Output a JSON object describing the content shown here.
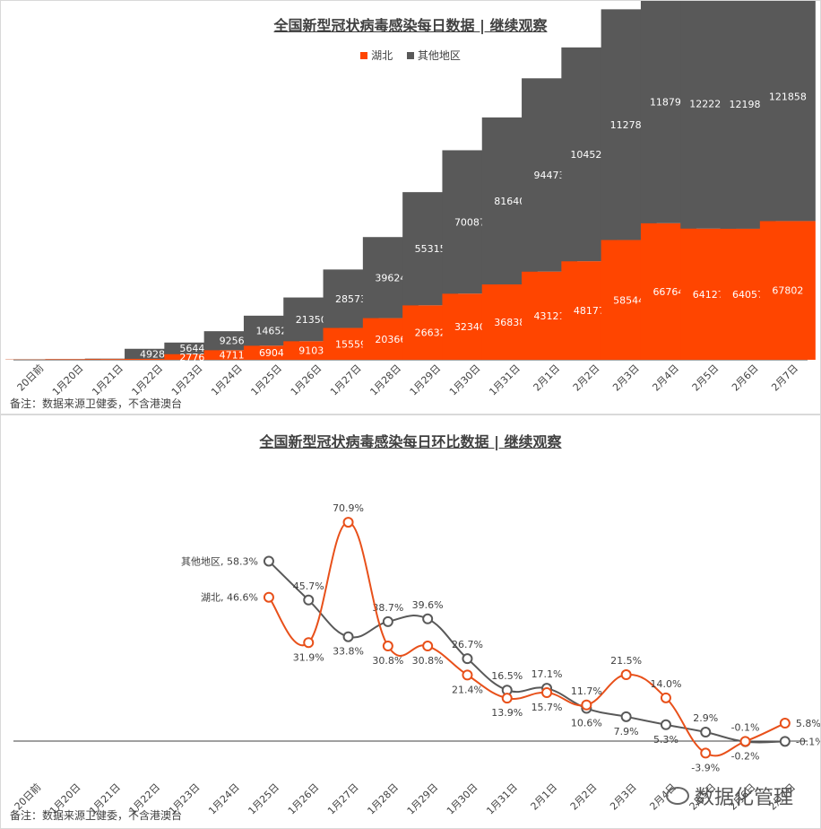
{
  "bar_chart": {
    "title": "全国新型冠状病毒感染每日数据 | 继续观察",
    "note": "备注：数据来源卫健委，不含港澳台",
    "colors": {
      "hubei": "#ff4500",
      "other": "#595959"
    }
  },
  "line_chart": {
    "title": "全国新型冠状病毒感染每日环比数据 | 继续观察",
    "note": "备注：数据来源卫健委，不含港澳台",
    "colors": {
      "hubei": "#e8501a",
      "other": "#595959"
    },
    "series_labels": {
      "other": "其他地区, 58.3%",
      "hubei": "湖北, 46.6%"
    }
  },
  "watermark": {
    "text": "数据化管理",
    "icon": "wechat-icon"
  },
  "chart_data": [
    {
      "type": "bar",
      "stacked": true,
      "title": "全国新型冠状病毒感染每日数据 | 继续观察",
      "categories": [
        "20日前",
        "1月20日",
        "1月21日",
        "1月22日",
        "1月23日",
        "1月24日",
        "1月25日",
        "1月26日",
        "1月27日",
        "1月28日",
        "1月29日",
        "1月30日",
        "1月31日",
        "2月1日",
        "2月2日",
        "2月3日",
        "2月4日",
        "2月5日",
        "2月6日",
        "2月7日"
      ],
      "series": [
        {
          "name": "湖北",
          "values": [
            150,
            270,
            375,
            444,
            2776,
            4711,
            6904,
            9103,
            15559,
            20366,
            26632,
            32340,
            36838,
            43121,
            48177,
            58544,
            66764,
            64127,
            64057,
            67802
          ]
        },
        {
          "name": "其他地区",
          "values": [
            50,
            100,
            190,
            4928,
            5644,
            9256,
            14652,
            21350,
            28573,
            39624,
            55315,
            70087,
            81640,
            94473,
            104523,
            112785,
            118791,
            122227,
            121988,
            121858
          ]
        }
      ],
      "data_labels": {
        "湖北": [
          "",
          "",
          "",
          "",
          "2776",
          "4711",
          "6904",
          "9103",
          "15559",
          "20366",
          "26632",
          "32340",
          "36838",
          "43121",
          "48177",
          "58544",
          "66764",
          "64127",
          "64057",
          "67802"
        ],
        "其他地区": [
          "",
          "",
          "",
          "4928",
          "5644",
          "9256",
          "14652",
          "21350",
          "28573",
          "39624",
          "55315",
          "70087",
          "81640",
          "94473",
          "104523",
          "112785",
          "118791",
          "122227",
          "121988",
          "121858"
        ]
      },
      "legend": "top",
      "ylim": [
        0,
        200000
      ],
      "grid": false
    },
    {
      "type": "line",
      "title": "全国新型冠状病毒感染每日环比数据 | 继续观察",
      "categories": [
        "20日前",
        "1月20日",
        "1月21日",
        "1月22日",
        "1月23日",
        "1月24日",
        "1月25日",
        "1月26日",
        "1月27日",
        "1月28日",
        "1月29日",
        "1月30日",
        "1月31日",
        "2月1日",
        "2月2日",
        "2月3日",
        "2月4日",
        "2月5日",
        "2月6日",
        "2月7日"
      ],
      "series": [
        {
          "name": "湖北",
          "values": [
            null,
            null,
            null,
            null,
            null,
            null,
            46.6,
            31.9,
            70.9,
            30.8,
            30.8,
            21.4,
            13.9,
            15.7,
            11.7,
            21.5,
            14.0,
            -3.9,
            -0.1,
            5.8
          ],
          "labels": [
            "",
            "",
            "",
            "",
            "",
            "",
            "湖北, 46.6%",
            "31.9%",
            "70.9%",
            "30.8%",
            "30.8%",
            "21.4%",
            "13.9%",
            "15.7%",
            "11.7%",
            "21.5%",
            "14.0%",
            "-3.9%",
            "-0.1%",
            "5.8%"
          ]
        },
        {
          "name": "其他地区",
          "values": [
            null,
            null,
            null,
            null,
            null,
            null,
            58.3,
            45.7,
            33.8,
            38.7,
            39.6,
            26.7,
            16.5,
            17.1,
            10.6,
            7.9,
            5.3,
            2.9,
            -0.2,
            -0.1
          ],
          "labels": [
            "",
            "",
            "",
            "",
            "",
            "",
            "其他地区, 58.3%",
            "45.7%",
            "33.8%",
            "38.7%",
            "39.6%",
            "26.7%",
            "16.5%",
            "17.1%",
            "10.6%",
            "7.9%",
            "5.3%",
            "2.9%",
            "-0.2%",
            "-0.1%"
          ]
        }
      ],
      "ylim": [
        -10,
        80
      ],
      "grid": false
    }
  ]
}
